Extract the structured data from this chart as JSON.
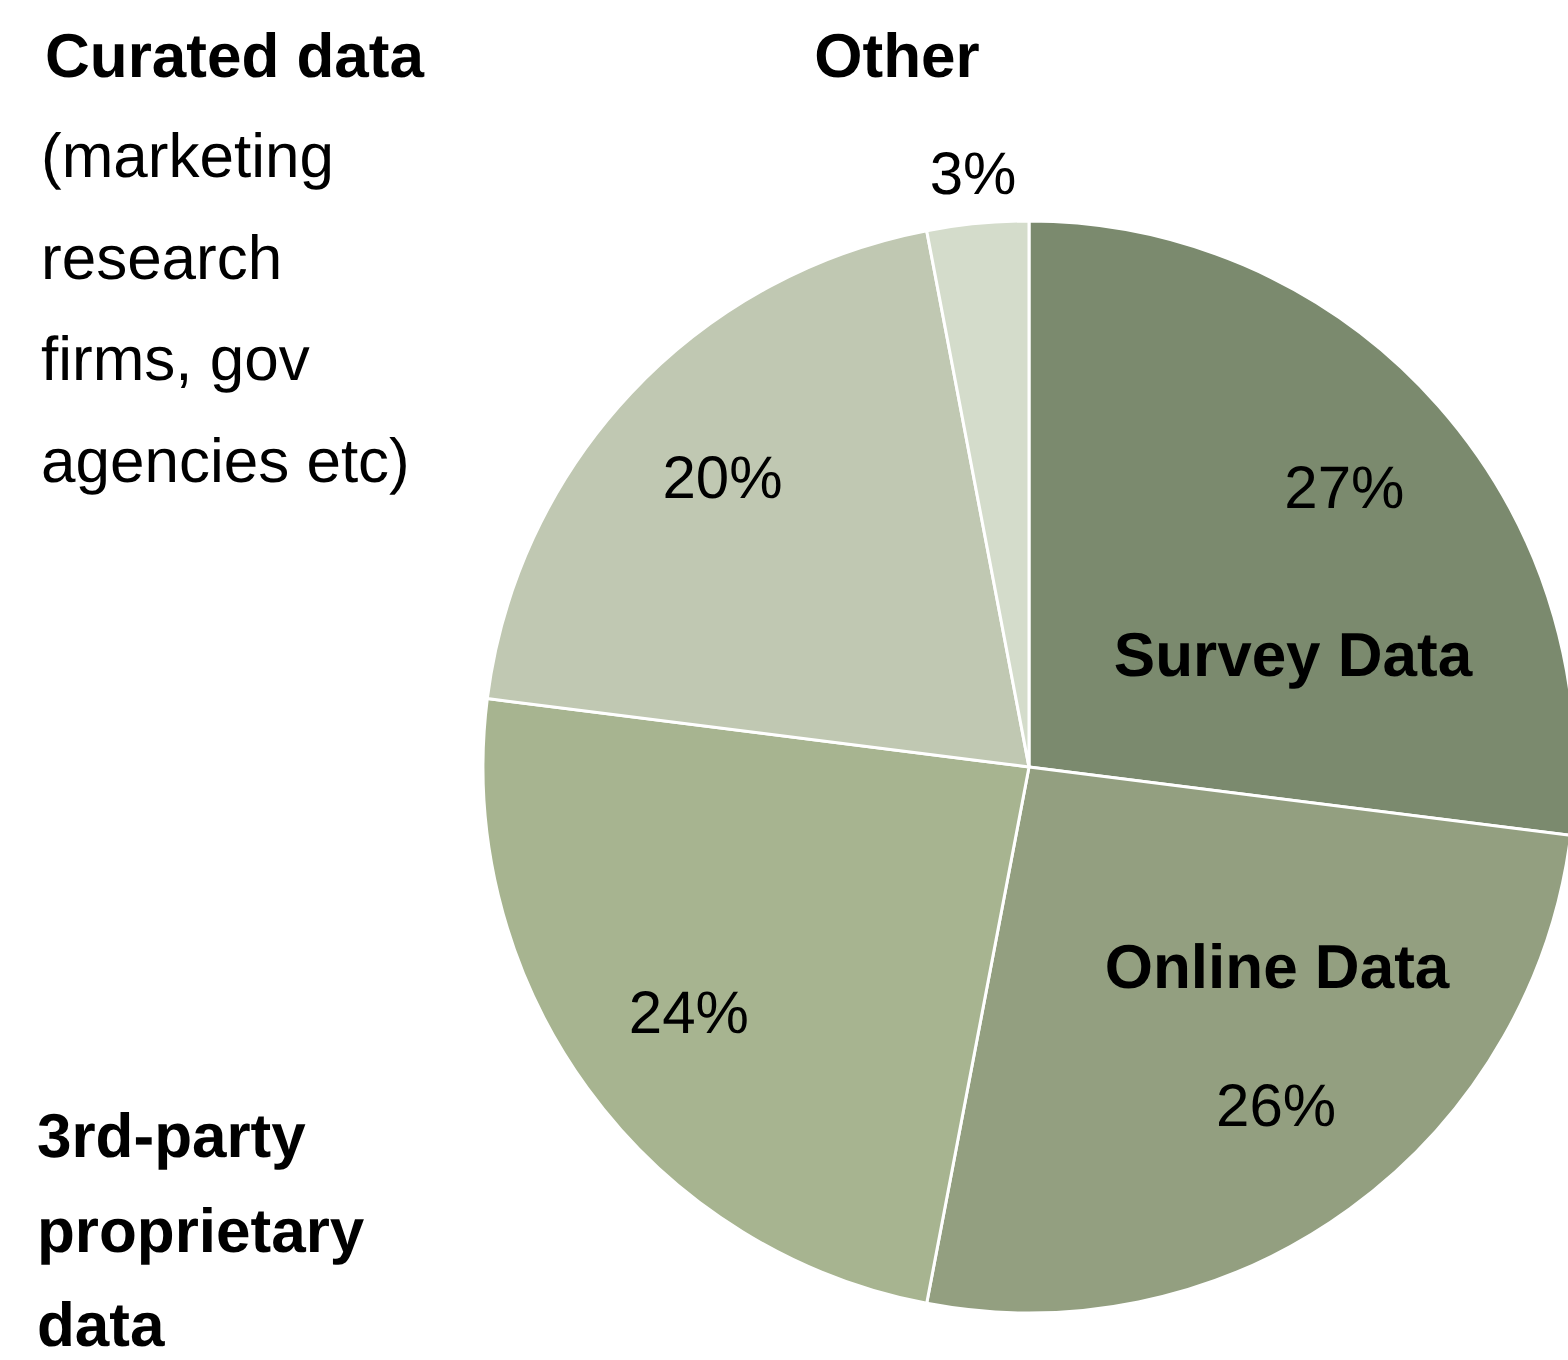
{
  "chart_data": {
    "type": "pie",
    "categories": [
      "Survey Data",
      "Online Data",
      "3rd-party proprietary data",
      "Curated data",
      "Other"
    ],
    "values": [
      27,
      26,
      24,
      20,
      3
    ],
    "colors": [
      "#7b8a6e",
      "#939f80",
      "#a7b490",
      "#c0c8b2",
      "#d4dccb"
    ],
    "value_labels": [
      "27%",
      "26%",
      "24%",
      "20%",
      "3%"
    ],
    "annotations": [
      "(marketing research firms, gov agencies etc)"
    ]
  }
}
